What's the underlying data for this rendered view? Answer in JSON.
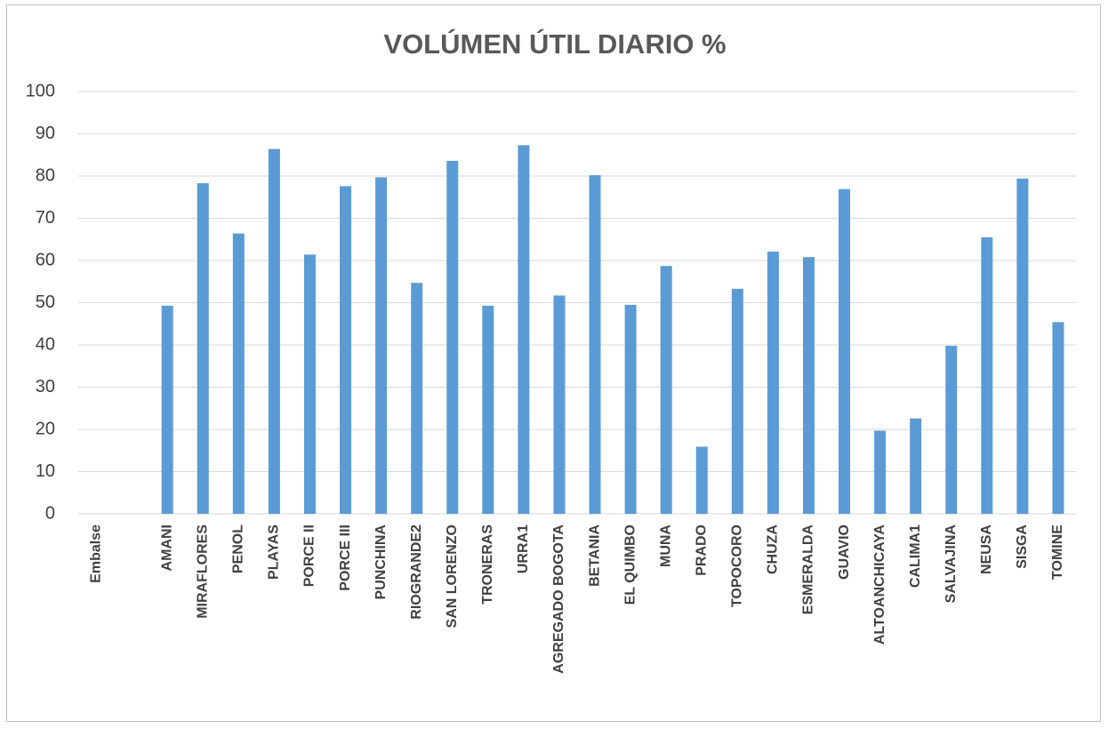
{
  "chart_data": {
    "type": "bar",
    "title": "VOLÚMEN ÚTIL DIARIO %",
    "categories": [
      "Embalse",
      null,
      "AMANI",
      "MIRAFLORES",
      "PENOL",
      "PLAYAS",
      "PORCE II",
      "PORCE III",
      "PUNCHINA",
      "RIOGRANDE2",
      "SAN LORENZO",
      "TRONERAS",
      "URRA1",
      "AGREGADO BOGOTA",
      "BETANIA",
      "EL QUIMBO",
      "MUNA",
      "PRADO",
      "TOPOCORO",
      "CHUZA",
      "ESMERALDA",
      "GUAVIO",
      "ALTOANCHICAYA",
      "CALIMA1",
      "SALVAJINA",
      "NEUSA",
      "SISGA",
      "TOMINE"
    ],
    "values": [
      null,
      null,
      49.3,
      78.3,
      66.4,
      86.4,
      61.4,
      77.6,
      79.7,
      54.7,
      83.6,
      49.3,
      87.3,
      51.7,
      80.2,
      49.5,
      58.7,
      15.9,
      53.3,
      62.1,
      60.8,
      76.9,
      19.7,
      22.6,
      39.8,
      65.5,
      79.4,
      45.4
    ],
    "color": "#5b9bd5",
    "ylim": [
      0,
      100
    ],
    "yticks": [
      0,
      10,
      20,
      30,
      40,
      50,
      60,
      70,
      80,
      90,
      100
    ],
    "grid": true
  }
}
